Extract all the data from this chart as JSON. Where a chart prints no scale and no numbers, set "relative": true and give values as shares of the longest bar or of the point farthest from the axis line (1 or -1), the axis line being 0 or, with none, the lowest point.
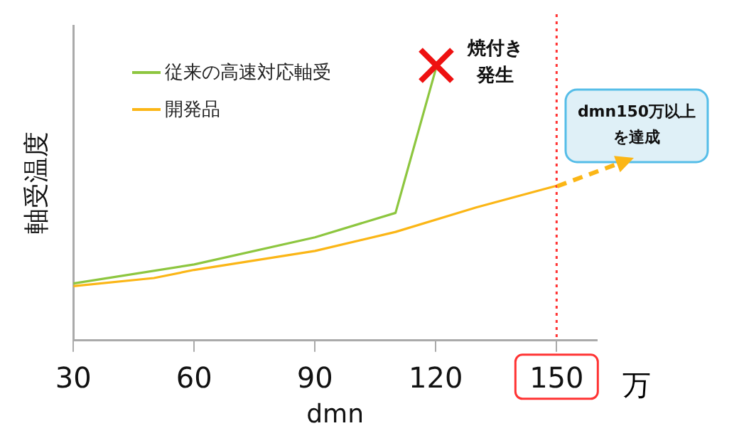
{
  "chart_data": {
    "type": "line",
    "relative": true,
    "xlabel": "dmn",
    "ylabel": "軸受温度",
    "xlim": [
      30,
      160
    ],
    "xticks": [
      30,
      60,
      90,
      120,
      150
    ],
    "legend": "top left",
    "grid": false,
    "marker": "none",
    "line_style": "solid",
    "series": [
      {
        "name": "従来の高速対応軸受",
        "color": "#8dc63f",
        "x": [
          30,
          60,
          90,
          110,
          120
        ],
        "values": [
          0.21,
          0.28,
          0.38,
          0.47,
          1.0
        ]
      },
      {
        "name": "開発品",
        "color": "#fbb616",
        "x": [
          30,
          50,
          60,
          90,
          110,
          130,
          150
        ],
        "values": [
          0.2,
          0.23,
          0.26,
          0.33,
          0.4,
          0.49,
          0.57
        ]
      }
    ],
    "ref_lines": [
      {
        "axis": "x",
        "value": 150,
        "color": "#ff3333",
        "line_style": "dotted"
      }
    ],
    "annotations": [
      {
        "text": "焼付き発生",
        "x": 120,
        "y": 1.0
      },
      "dmn150万以上を達成",
      "万"
    ]
  }
}
